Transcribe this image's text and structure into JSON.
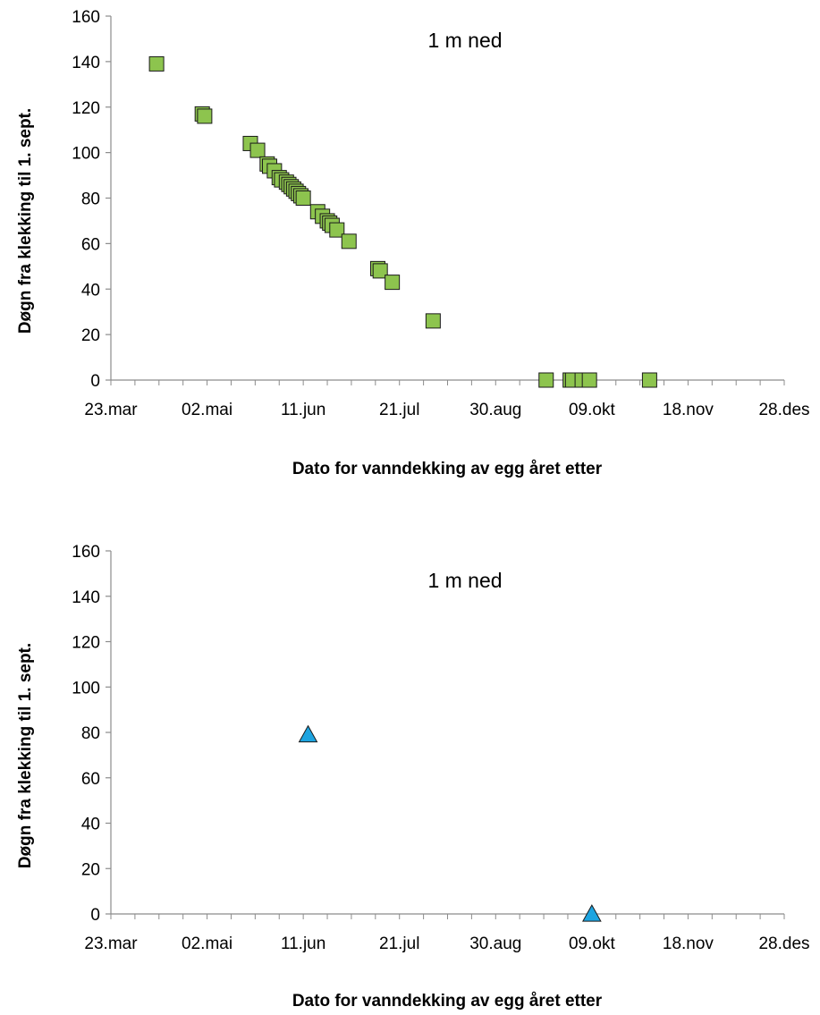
{
  "chart_data": [
    {
      "type": "scatter",
      "annotation": "1 m ned",
      "xlabel": "Dato for vanndekking av egg året etter",
      "ylabel": "Døgn fra klekking til 1. sept.",
      "ylim": [
        0,
        160
      ],
      "yticks": [
        "0",
        "20",
        "40",
        "60",
        "80",
        "100",
        "120",
        "140",
        "160"
      ],
      "xlim": [
        "23.mar",
        "28.des"
      ],
      "xticks": [
        "23.mar",
        "02.mai",
        "11.jun",
        "21.jul",
        "30.aug",
        "09.okt",
        "18.nov",
        "28.des"
      ],
      "marker": "square",
      "marker_color": "#8dc44e",
      "grid": false,
      "series": [
        {
          "points": [
            {
              "x": "11.apr",
              "y": 139
            },
            {
              "x": "30.apr",
              "y": 117
            },
            {
              "x": "01.mai",
              "y": 116
            },
            {
              "x": "20.mai",
              "y": 104
            },
            {
              "x": "23.mai",
              "y": 101
            },
            {
              "x": "27.mai",
              "y": 95
            },
            {
              "x": "28.mai",
              "y": 94
            },
            {
              "x": "30.mai",
              "y": 92
            },
            {
              "x": "01.jun",
              "y": 89
            },
            {
              "x": "02.jun",
              "y": 88
            },
            {
              "x": "04.jun",
              "y": 87
            },
            {
              "x": "05.jun",
              "y": 86
            },
            {
              "x": "06.jun",
              "y": 85
            },
            {
              "x": "07.jun",
              "y": 84
            },
            {
              "x": "08.jun",
              "y": 83
            },
            {
              "x": "09.jun",
              "y": 82
            },
            {
              "x": "10.jun",
              "y": 81
            },
            {
              "x": "11.jun",
              "y": 80
            },
            {
              "x": "17.jun",
              "y": 74
            },
            {
              "x": "19.jun",
              "y": 72
            },
            {
              "x": "21.jun",
              "y": 70
            },
            {
              "x": "22.jun",
              "y": 69
            },
            {
              "x": "23.jun",
              "y": 68
            },
            {
              "x": "25.jun",
              "y": 66
            },
            {
              "x": "30.jun",
              "y": 61
            },
            {
              "x": "12.jul",
              "y": 49
            },
            {
              "x": "13.jul",
              "y": 48
            },
            {
              "x": "18.jul",
              "y": 43
            },
            {
              "x": "04.aug",
              "y": 26
            },
            {
              "x": "20.sep",
              "y": 0
            },
            {
              "x": "30.sep",
              "y": 0
            },
            {
              "x": "01.okt",
              "y": 0
            },
            {
              "x": "05.okt",
              "y": 0
            },
            {
              "x": "08.okt",
              "y": 0
            },
            {
              "x": "02.nov",
              "y": 0
            }
          ]
        }
      ]
    },
    {
      "type": "scatter",
      "annotation": "1 m ned",
      "xlabel": "Dato for vanndekking av egg året etter",
      "ylabel": "Døgn fra klekking til 1. sept.",
      "ylim": [
        0,
        160
      ],
      "yticks": [
        "0",
        "20",
        "40",
        "60",
        "80",
        "100",
        "120",
        "140",
        "160"
      ],
      "xlim": [
        "23.mar",
        "28.des"
      ],
      "xticks": [
        "23.mar",
        "02.mai",
        "11.jun",
        "21.jul",
        "30.aug",
        "09.okt",
        "18.nov",
        "28.des"
      ],
      "marker": "triangle",
      "marker_color": "#1da4e0",
      "grid": false,
      "series": [
        {
          "points": [
            {
              "x": "13.jun",
              "y": 79
            },
            {
              "x": "09.okt",
              "y": 0
            }
          ]
        }
      ]
    }
  ]
}
